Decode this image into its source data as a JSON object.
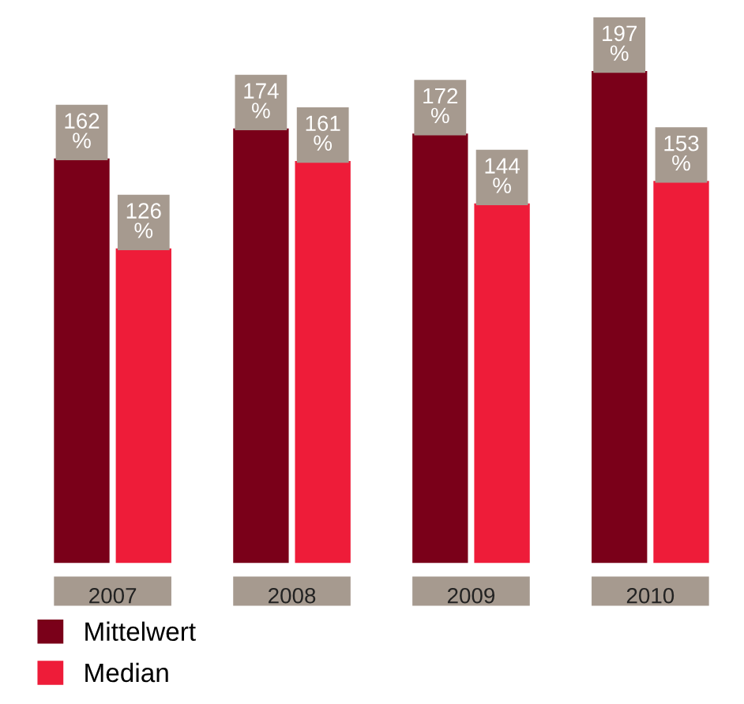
{
  "chart_data": {
    "type": "bar",
    "categories": [
      "2007",
      "2008",
      "2009",
      "2010"
    ],
    "series": [
      {
        "name": "Mittelwert",
        "color": "#7a0019",
        "values": [
          162,
          174,
          172,
          197
        ],
        "value_labels": [
          "162\n%",
          "174\n%",
          "172\n%",
          "197\n%"
        ]
      },
      {
        "name": "Median",
        "color": "#ee1c39",
        "values": [
          126,
          161,
          144,
          153
        ],
        "value_labels": [
          "126\n%",
          "161\n%",
          "144\n%",
          "153\n%"
        ]
      }
    ],
    "legend": "bottom left",
    "grid": false
  }
}
